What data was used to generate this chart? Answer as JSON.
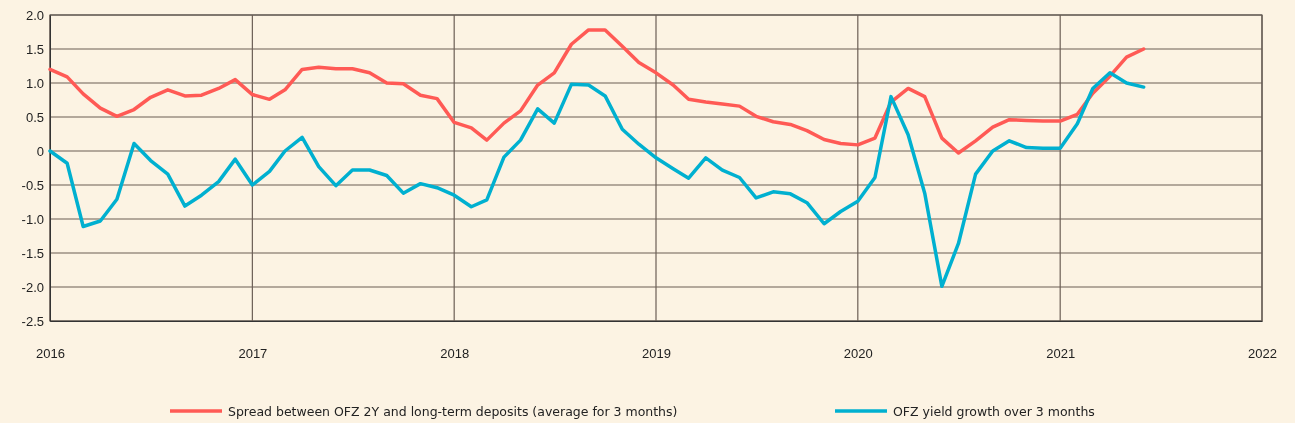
{
  "chart_data": {
    "type": "line",
    "x": [
      "2016-01",
      "2016-02",
      "2016-03",
      "2016-04",
      "2016-05",
      "2016-06",
      "2016-07",
      "2016-08",
      "2016-09",
      "2016-10",
      "2016-11",
      "2016-12",
      "2017-01",
      "2017-02",
      "2017-03",
      "2017-04",
      "2017-05",
      "2017-06",
      "2017-07",
      "2017-08",
      "2017-09",
      "2017-10",
      "2017-11",
      "2017-12",
      "2018-01",
      "2018-02",
      "2018-03",
      "2018-04",
      "2018-05",
      "2018-06",
      "2018-07",
      "2018-08",
      "2018-09",
      "2018-10",
      "2018-11",
      "2018-12",
      "2019-01",
      "2019-02",
      "2019-03",
      "2019-04",
      "2019-05",
      "2019-06",
      "2019-07",
      "2019-08",
      "2019-09",
      "2019-10",
      "2019-11",
      "2019-12",
      "2020-01",
      "2020-02",
      "2020-03",
      "2020-04",
      "2020-05",
      "2020-06",
      "2020-07",
      "2020-08",
      "2020-09",
      "2020-10",
      "2020-11",
      "2020-12",
      "2021-01",
      "2021-02",
      "2021-03",
      "2021-04",
      "2021-05",
      "2021-06"
    ],
    "series": [
      {
        "name": "Spread between OFZ 2Y and long-term deposits (average for 3 months)",
        "color": "#ff5a55",
        "values": [
          1.2,
          1.09,
          0.84,
          0.63,
          0.51,
          0.61,
          0.79,
          0.9,
          0.81,
          0.82,
          0.92,
          1.05,
          0.83,
          0.76,
          0.9,
          1.2,
          1.23,
          1.21,
          1.21,
          1.15,
          1.0,
          0.99,
          0.82,
          0.77,
          0.42,
          0.34,
          0.16,
          0.41,
          0.59,
          0.97,
          1.15,
          1.57,
          1.78,
          1.78,
          1.54,
          1.3,
          1.15,
          0.97,
          0.76,
          0.72,
          0.69,
          0.66,
          0.51,
          0.43,
          0.39,
          0.3,
          0.17,
          0.11,
          0.09,
          0.19,
          0.72,
          0.92,
          0.8,
          0.19,
          -0.03,
          0.15,
          0.35,
          0.46,
          0.45,
          0.44,
          0.44,
          0.54,
          0.85,
          1.1,
          1.38,
          1.5
        ]
      },
      {
        "name": "OFZ yield growth over 3 months",
        "color": "#00b0d0",
        "values": [
          0,
          -0.18,
          -1.11,
          -1.03,
          -0.71,
          0.11,
          -0.14,
          -0.34,
          -0.81,
          -0.65,
          -0.45,
          -0.12,
          -0.5,
          -0.3,
          0,
          0.2,
          -0.23,
          -0.51,
          -0.28,
          -0.28,
          -0.36,
          -0.62,
          -0.48,
          -0.54,
          -0.65,
          -0.82,
          -0.72,
          -0.09,
          0.16,
          0.62,
          0.41,
          0.98,
          0.97,
          0.81,
          0.32,
          0.1,
          -0.1,
          -0.26,
          -0.4,
          -0.1,
          -0.28,
          -0.39,
          -0.69,
          -0.6,
          -0.63,
          -0.76,
          -1.07,
          -0.89,
          -0.74,
          -0.39,
          0.8,
          0.24,
          -0.62,
          -1.99,
          -1.36,
          -0.34,
          0,
          0.15,
          0.05,
          0.04,
          0.04,
          0.4,
          0.92,
          1.15,
          1.0,
          0.94
        ]
      }
    ],
    "xlim": [
      "2016",
      "2022"
    ],
    "xticks": [
      "2016",
      "2017",
      "2018",
      "2019",
      "2020",
      "2021",
      "2022"
    ],
    "ylim": [
      -2.5,
      2
    ],
    "yticks": [
      {
        "value": 2,
        "label": "2.0"
      },
      {
        "value": 1.5,
        "label": "1.5"
      },
      {
        "value": 1,
        "label": "1.0"
      },
      {
        "value": 0.5,
        "label": "0.5"
      },
      0,
      {
        "value": -0.5,
        "label": "-0.5"
      },
      {
        "value": -1,
        "label": "-1.0"
      },
      {
        "value": -1.5,
        "label": "-1.5"
      },
      {
        "value": -2,
        "label": "-2.0"
      },
      {
        "value": -2.5,
        "label": "-2.5"
      }
    ],
    "grid": true,
    "legend": "bottom",
    "marker": "none",
    "line_style": "solid"
  }
}
